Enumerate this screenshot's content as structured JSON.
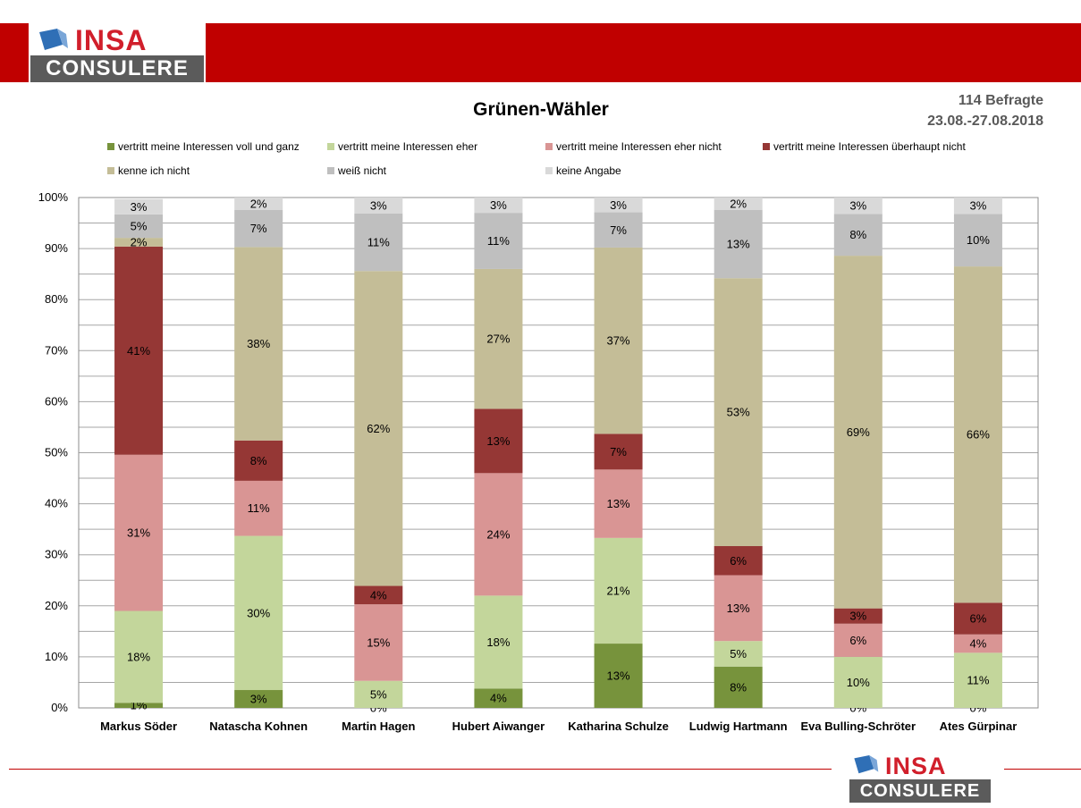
{
  "brand": {
    "logo_top_text": "INSA",
    "logo_bottom_text": "CONSULERE",
    "colors": {
      "red": "#c00000",
      "logo_red": "#d11f2b",
      "logo_grey": "#5b5b5b",
      "cube_blue": "#2f6fb6"
    }
  },
  "header": {
    "respondents": "114 Befragte",
    "date_range": "23.08.-27.08.2018"
  },
  "chart_data": {
    "type": "bar",
    "stacked": true,
    "title": "Grünen-Wähler",
    "ylim": [
      0,
      100
    ],
    "y_ticks": [
      "0%",
      "10%",
      "20%",
      "30%",
      "40%",
      "50%",
      "60%",
      "70%",
      "80%",
      "90%",
      "100%"
    ],
    "grid": true,
    "legend_position": "top",
    "categories": [
      "Markus Söder",
      "Natascha Kohnen",
      "Martin Hagen",
      "Hubert Aiwanger",
      "Katharina Schulze",
      "Ludwig Hartmann",
      "Eva Bulling-Schröter",
      "Ates Gürpinar"
    ],
    "series": [
      {
        "name": "vertritt meine Interessen voll und ganz",
        "color": "#77933c",
        "values": [
          1,
          3.5,
          0,
          3.8,
          12.6,
          8.1,
          0,
          0
        ],
        "labels": [
          "1%",
          "3%",
          "0%",
          "4%",
          "13%",
          "8%",
          "0%",
          "0%"
        ]
      },
      {
        "name": "vertritt meine Interessen eher",
        "color": "#c3d69b",
        "values": [
          18,
          30.2,
          5.3,
          18.2,
          20.7,
          5.0,
          10.0,
          10.8
        ],
        "labels": [
          "18%",
          "30%",
          "5%",
          "18%",
          "21%",
          "5%",
          "10%",
          "11%"
        ]
      },
      {
        "name": "vertritt meine Interessen eher nicht",
        "color": "#d99594",
        "values": [
          30.6,
          10.8,
          15.0,
          24.0,
          13.4,
          12.9,
          6.5,
          3.6
        ],
        "labels": [
          "31%",
          "11%",
          "15%",
          "24%",
          "13%",
          "13%",
          "6%",
          "4%"
        ]
      },
      {
        "name": "vertritt meine Interessen überhaupt nicht",
        "color": "#953735",
        "values": [
          40.8,
          7.9,
          3.6,
          12.6,
          7.0,
          5.7,
          3.0,
          6.2
        ],
        "labels": [
          "41%",
          "8%",
          "4%",
          "13%",
          "7%",
          "6%",
          "3%",
          "6%"
        ]
      },
      {
        "name": "kenne ich nicht",
        "color": "#c4bd97",
        "values": [
          1.7,
          37.9,
          61.7,
          27.4,
          36.5,
          52.5,
          69.1,
          65.9
        ],
        "labels": [
          "2%",
          "38%",
          "62%",
          "27%",
          "37%",
          "53%",
          "69%",
          "66%"
        ]
      },
      {
        "name": "weiß nicht",
        "color": "#bfbfbf",
        "values": [
          4.6,
          7.3,
          11.3,
          11.0,
          6.9,
          13.4,
          8.2,
          10.3
        ],
        "labels": [
          "5%",
          "7%",
          "11%",
          "11%",
          "7%",
          "13%",
          "8%",
          "10%"
        ]
      },
      {
        "name": "keine Angabe",
        "color": "#d9d9d9",
        "values": [
          3.0,
          2.4,
          3.1,
          3.0,
          2.9,
          2.4,
          3.2,
          3.2
        ],
        "labels": [
          "3%",
          "2%",
          "3%",
          "3%",
          "3%",
          "2%",
          "3%",
          "3%"
        ]
      }
    ]
  }
}
